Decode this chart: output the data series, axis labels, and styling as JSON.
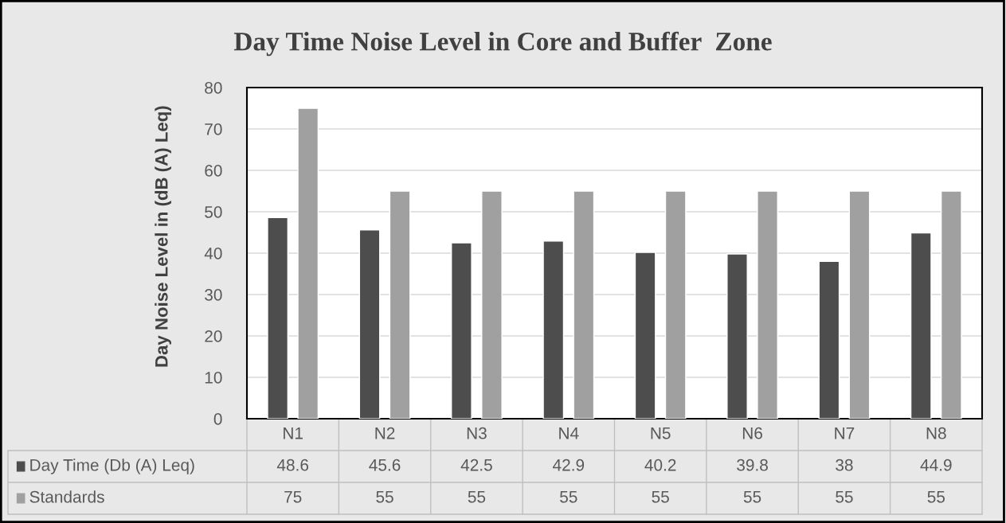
{
  "chart_data": {
    "type": "bar",
    "title": "Day Time Noise Level in Core and Buffer  Zone",
    "ylabel": "Day Noise Level in (dB (A) Leq)",
    "categories": [
      "N1",
      "N2",
      "N3",
      "N4",
      "N5",
      "N6",
      "N7",
      "N8"
    ],
    "series": [
      {
        "name": "Day Time (Db (A) Leq)",
        "color": "#4d4d4d",
        "values": [
          48.6,
          45.6,
          42.5,
          42.9,
          40.2,
          39.8,
          38,
          44.9
        ]
      },
      {
        "name": "Standards",
        "color": "#a0a0a0",
        "values": [
          75,
          55,
          55,
          55,
          55,
          55,
          55,
          55
        ]
      }
    ],
    "ylim": [
      0,
      80
    ],
    "yticks": [
      0,
      10,
      20,
      30,
      40,
      50,
      60,
      70,
      80
    ],
    "grid": "y",
    "legend": "bottom",
    "data_labels": true
  }
}
